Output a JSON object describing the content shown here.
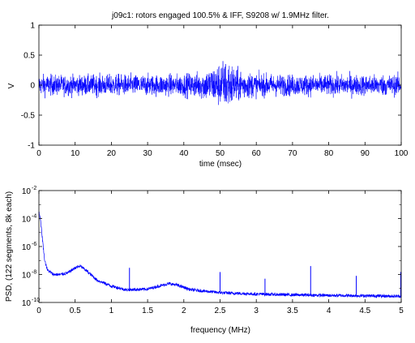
{
  "chart_data": [
    {
      "type": "line",
      "title": "j09c1: rotors engaged 100.5% & IFF, S9208 w/ 1.9MHz filter.",
      "xlabel": "time (msec)",
      "ylabel": "V",
      "xlim": [
        0,
        100
      ],
      "ylim": [
        -1,
        1
      ],
      "xticks": [
        "0",
        "10",
        "20",
        "30",
        "40",
        "50",
        "60",
        "70",
        "80",
        "90",
        "100"
      ],
      "yticks": [
        "1",
        "0.5",
        "0",
        "-0.5",
        "-1"
      ],
      "grid": false,
      "series_color": "#0000ff",
      "series": [
        {
          "description": "noisy voltage time series centered at 0, typical peak ±0.3 V, burst near 50 ms",
          "envelope_time_ms": [
            0,
            10,
            20,
            30,
            40,
            44,
            48,
            50,
            52,
            54,
            56,
            60,
            70,
            80,
            90,
            100
          ],
          "envelope_max_V": [
            0.3,
            0.3,
            0.32,
            0.3,
            0.32,
            0.38,
            0.5,
            0.62,
            0.58,
            0.48,
            0.4,
            0.34,
            0.3,
            0.3,
            0.3,
            0.3
          ],
          "envelope_min_V": [
            -0.3,
            -0.28,
            -0.3,
            -0.3,
            -0.3,
            -0.35,
            -0.55,
            -0.72,
            -0.78,
            -0.6,
            -0.45,
            -0.32,
            -0.3,
            -0.3,
            -0.3,
            -0.3
          ]
        }
      ]
    },
    {
      "type": "line",
      "xlabel": "frequency (MHz)",
      "ylabel": "PSD, (122 segments, 8k each)",
      "xlim": [
        0,
        5
      ],
      "ylim": [
        1e-10,
        0.01
      ],
      "yscale": "log",
      "xticks": [
        "0",
        "0.5",
        "1",
        "1.5",
        "2",
        "2.5",
        "3",
        "3.5",
        "4",
        "4.5",
        "5"
      ],
      "yticks": [
        {
          "base": "10",
          "exp": "-2"
        },
        {
          "base": "10",
          "exp": "-4"
        },
        {
          "base": "10",
          "exp": "-6"
        },
        {
          "base": "10",
          "exp": "-8"
        },
        {
          "base": "10",
          "exp": "-10"
        }
      ],
      "grid": false,
      "series_color": "#0000ff",
      "series": [
        {
          "description": "power spectral density",
          "x_MHz": [
            0.0,
            0.02,
            0.05,
            0.08,
            0.12,
            0.2,
            0.3,
            0.4,
            0.5,
            0.57,
            0.65,
            0.8,
            1.0,
            1.2,
            1.5,
            1.7,
            1.8,
            1.9,
            2.1,
            2.5,
            3.0,
            3.5,
            4.0,
            4.5,
            5.0
          ],
          "y": [
            0.0003,
            0.0001,
            3e-06,
            1e-07,
            2e-08,
            1e-08,
            1e-08,
            1.3e-08,
            3e-08,
            4e-08,
            2e-08,
            4e-09,
            1.5e-09,
            8e-10,
            9e-10,
            1.7e-09,
            2.2e-09,
            1.8e-09,
            8e-10,
            5e-10,
            4e-10,
            3.5e-10,
            3.2e-10,
            3e-10,
            2.8e-10
          ]
        }
      ],
      "spikes": [
        {
          "x": 1.25,
          "y": 3e-08
        },
        {
          "x": 2.5,
          "y": 1.5e-08
        },
        {
          "x": 3.12,
          "y": 5e-09
        },
        {
          "x": 3.75,
          "y": 4e-08
        },
        {
          "x": 4.38,
          "y": 8e-09
        },
        {
          "x": 5.0,
          "y": 1.5e-08
        }
      ]
    }
  ]
}
